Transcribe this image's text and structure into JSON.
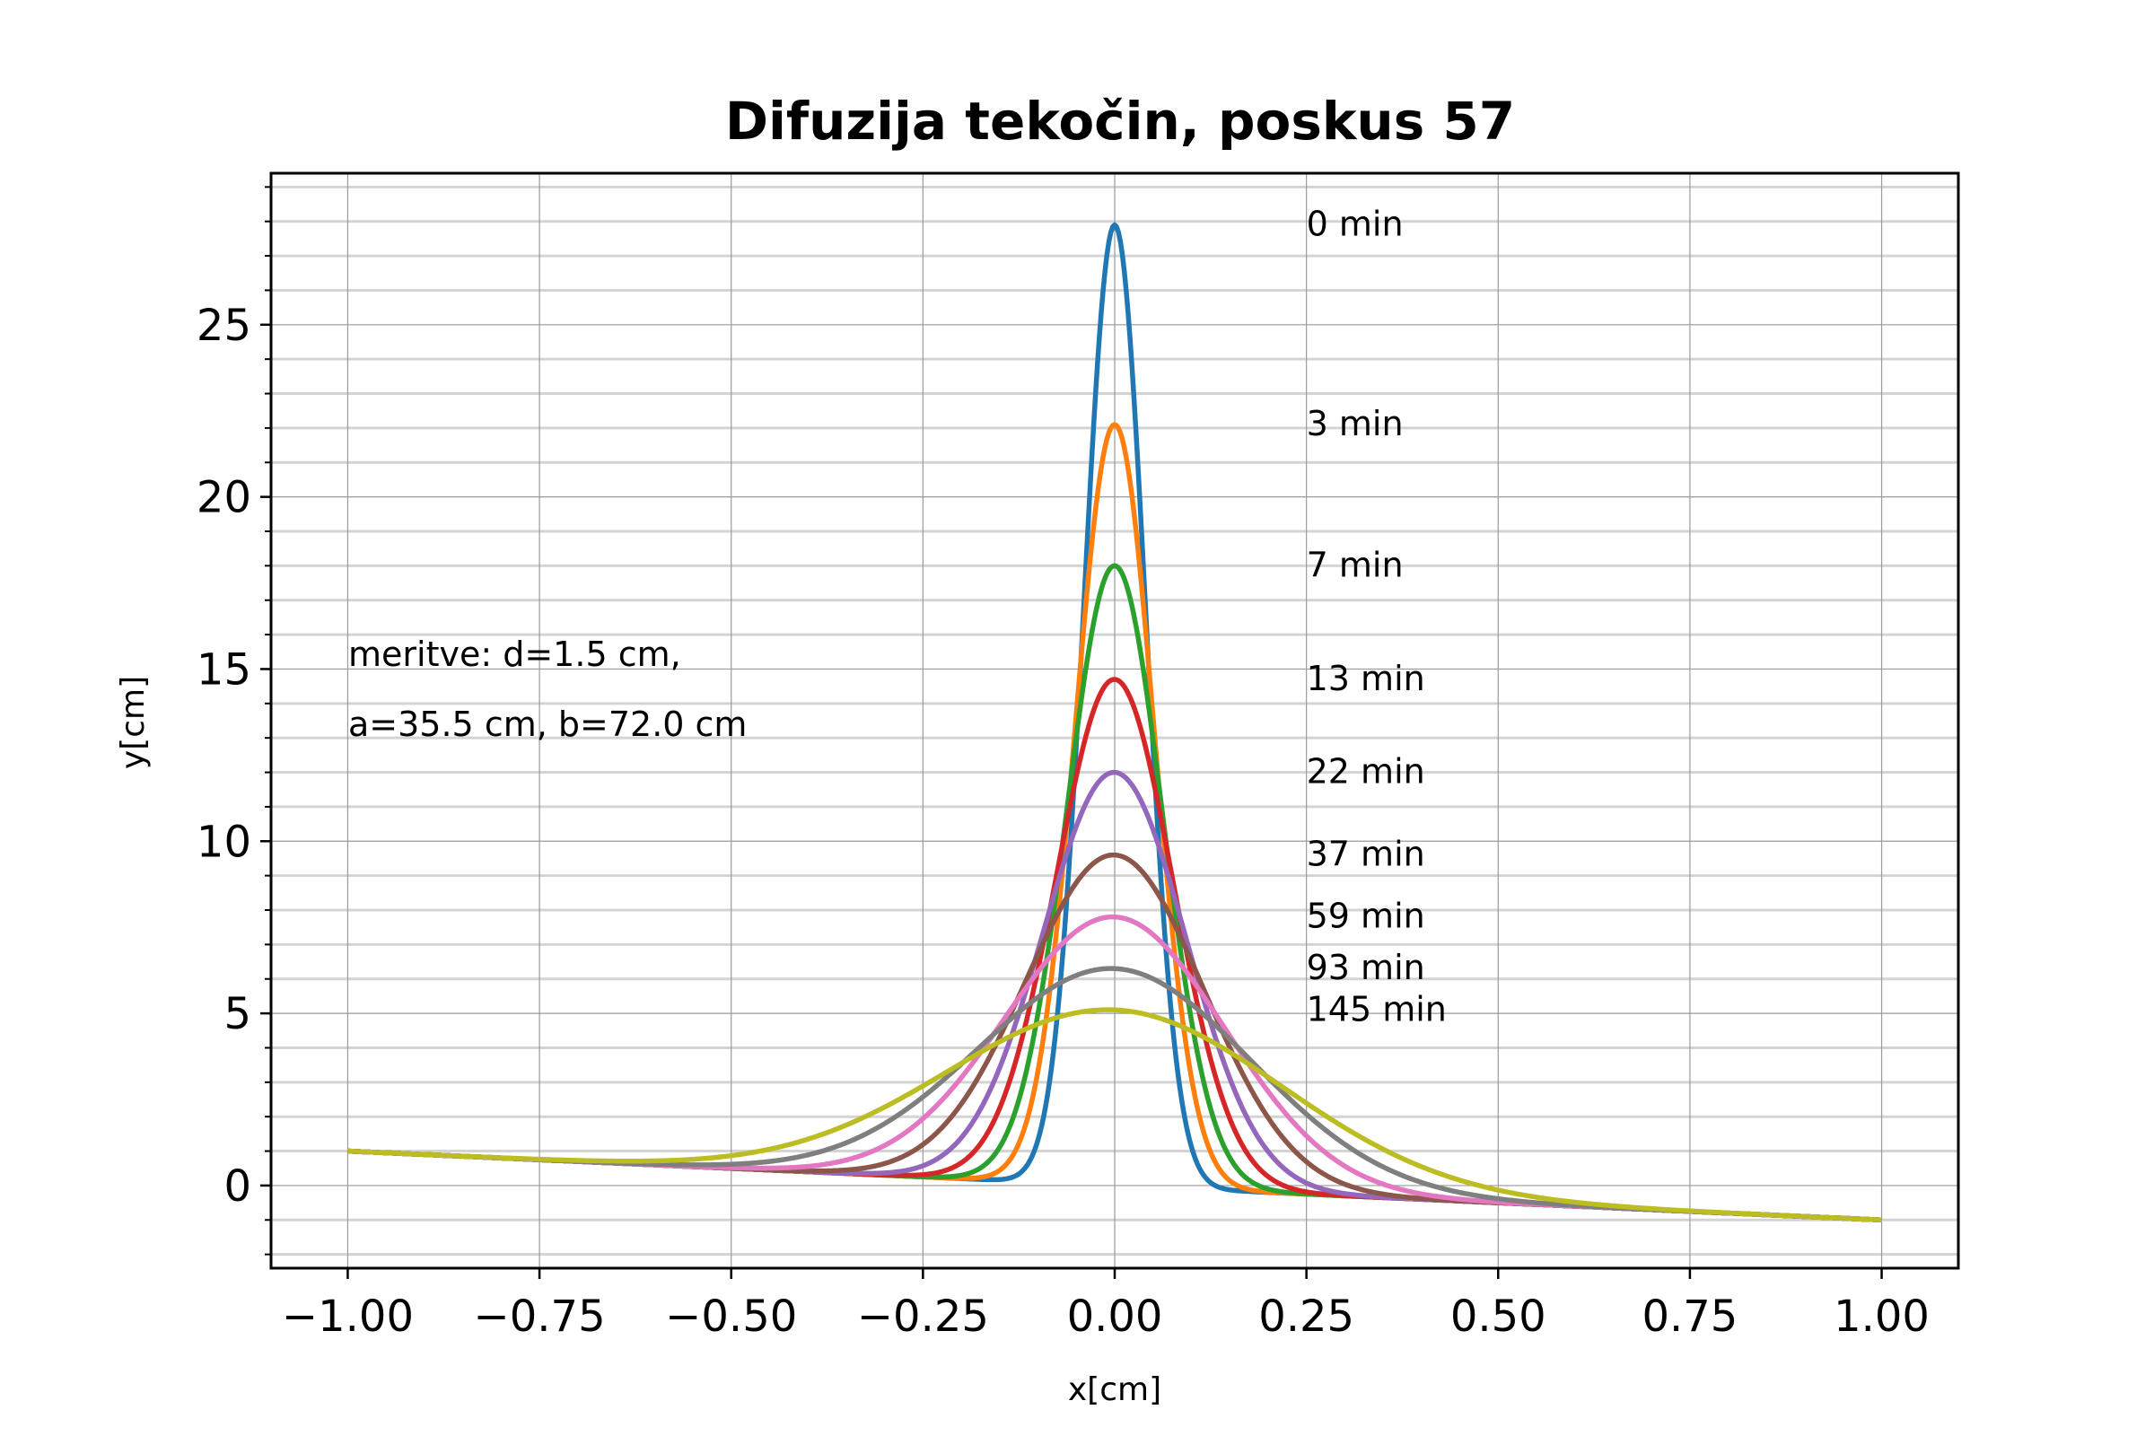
{
  "chart_data": {
    "type": "line",
    "title": "Difuzija tekočin, poskus 57",
    "xlabel": "x[cm]",
    "ylabel": "y[cm]",
    "xlim": [
      -1.1,
      1.1
    ],
    "ylim": [
      -2.4,
      29.4
    ],
    "x_ticks": [
      -1.0,
      -0.75,
      -0.5,
      -0.25,
      0.0,
      0.25,
      0.5,
      0.75,
      1.0
    ],
    "x_tick_labels": [
      "−1.00",
      "−0.75",
      "−0.50",
      "−0.25",
      "0.00",
      "0.25",
      "0.50",
      "0.75",
      "1.00"
    ],
    "y_ticks": [
      0,
      5,
      10,
      15,
      20,
      25
    ],
    "y_tick_labels": [
      "0",
      "5",
      "10",
      "15",
      "20",
      "25"
    ],
    "y_minor_step": 1,
    "grid": true,
    "baseline": {
      "x_start": -1.0,
      "y_start": 1.0,
      "x_end": 1.0,
      "y_end": -1.0
    },
    "annotation_lines": [
      "meritve: d=1.5 cm,",
      "a=35.5 cm, b=72.0 cm"
    ],
    "series": [
      {
        "label": "0 min",
        "peak": 27.9,
        "sigma": 0.04,
        "color": "#1f77b4"
      },
      {
        "label": "3 min",
        "peak": 22.1,
        "sigma": 0.051,
        "color": "#ff7f0e"
      },
      {
        "label": "7 min",
        "peak": 18.0,
        "sigma": 0.062,
        "color": "#2ca02c"
      },
      {
        "label": "13 min",
        "peak": 14.7,
        "sigma": 0.076,
        "color": "#d62728"
      },
      {
        "label": "22 min",
        "peak": 12.0,
        "sigma": 0.093,
        "color": "#9467bd"
      },
      {
        "label": "37 min",
        "peak": 9.6,
        "sigma": 0.116,
        "color": "#8c564b"
      },
      {
        "label": "59 min",
        "peak": 7.8,
        "sigma": 0.143,
        "color": "#e377c2"
      },
      {
        "label": "93 min",
        "peak": 6.3,
        "sigma": 0.177,
        "color": "#7f7f7f"
      },
      {
        "label": "145 min",
        "peak": 5.1,
        "sigma": 0.218,
        "color": "#bcbd22"
      }
    ]
  }
}
